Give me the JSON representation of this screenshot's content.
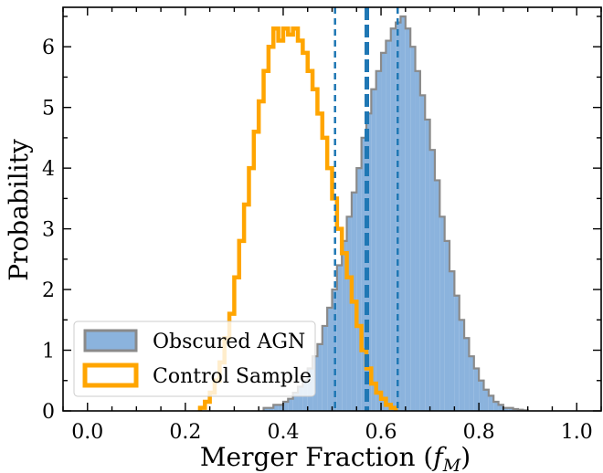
{
  "chart_data": {
    "type": "histogram",
    "xlabel": "Merger Fraction (f_M)",
    "xlabel_main": "Merger Fraction (",
    "xlabel_var": "f",
    "xlabel_sub": "M",
    "xlabel_close": ")",
    "ylabel": "Probability",
    "xlim": [
      -0.05,
      1.05
    ],
    "ylim": [
      0,
      6.65
    ],
    "xticks": [
      0.0,
      0.2,
      0.4,
      0.6,
      0.8,
      1.0
    ],
    "xtick_labels": [
      "0.0",
      "0.2",
      "0.4",
      "0.6",
      "0.8",
      "1.0"
    ],
    "yticks": [
      0,
      1,
      2,
      3,
      4,
      5,
      6
    ],
    "ytick_labels": [
      "0",
      "1",
      "2",
      "3",
      "4",
      "5",
      "6"
    ],
    "legend_position": "lower-left",
    "bin_width": 0.01,
    "series": [
      {
        "name": "Obscured AGN",
        "style": "filled",
        "fill": "#8bb3dd",
        "edge": "#8a8a8a",
        "bin_start": 0.36,
        "values": [
          0.05,
          0.05,
          0.1,
          0.1,
          0.15,
          0.2,
          0.3,
          0.4,
          0.5,
          0.7,
          0.9,
          1.1,
          1.4,
          1.7,
          2.0,
          2.4,
          2.8,
          3.2,
          3.6,
          4.0,
          4.5,
          4.9,
          5.3,
          5.6,
          5.9,
          6.1,
          6.3,
          6.4,
          6.5,
          6.3,
          6.0,
          5.6,
          5.2,
          4.8,
          4.3,
          3.8,
          3.2,
          2.8,
          2.3,
          1.9,
          1.5,
          1.2,
          0.9,
          0.7,
          0.5,
          0.35,
          0.25,
          0.15,
          0.1,
          0.05,
          0.05,
          0.03,
          0.02,
          0.01
        ]
      },
      {
        "name": "Control Sample",
        "style": "step",
        "color": "#ffa500",
        "bin_start": 0.23,
        "values": [
          0.05,
          0.15,
          0.3,
          0.5,
          0.8,
          1.2,
          1.6,
          2.2,
          2.8,
          3.4,
          4.0,
          4.6,
          5.1,
          5.6,
          6.0,
          6.3,
          6.1,
          6.3,
          6.2,
          6.3,
          6.1,
          5.9,
          5.6,
          5.3,
          4.9,
          4.5,
          4.0,
          3.5,
          3.0,
          2.6,
          2.2,
          1.8,
          1.4,
          1.0,
          0.7,
          0.45,
          0.3,
          0.2,
          0.1,
          0.05
        ]
      }
    ],
    "vlines": [
      {
        "x": 0.571,
        "style": "solid",
        "color": "#1f77b4"
      },
      {
        "x": 0.506,
        "style": "dashed",
        "color": "#1f77b4"
      },
      {
        "x": 0.634,
        "style": "dashed",
        "color": "#1f77b4"
      }
    ]
  }
}
